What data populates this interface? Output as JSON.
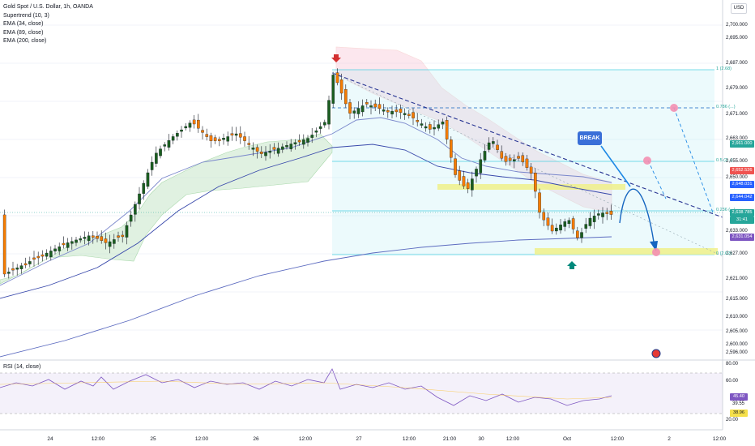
{
  "chart": {
    "symbol_title": "Gold Spot / U.S. Dollar, 1h, OANDA",
    "indicators": [
      "Supertrend (10, 3)",
      "EMA (34, close)",
      "EMA (89, close)",
      "EMA (200, close)"
    ],
    "currency": "USD",
    "break_label": "BREAK"
  },
  "price_axis": {
    "labels": [
      "2,700.000",
      "2,695.000",
      "2,687.000",
      "2,679.000",
      "2,671.000",
      "2,663.000",
      "2,655.000",
      "2,650.000",
      "2,633.000",
      "2,627.000",
      "2,621.000",
      "2,615.000",
      "2,610.000",
      "2,605.000",
      "2,600.000",
      "2,596.000"
    ],
    "badges": [
      {
        "text": "2,661.000",
        "color": "#26a69a"
      },
      {
        "text": "2,652.526",
        "color": "#ef5350"
      },
      {
        "text": "2,648.031",
        "color": "#2962ff"
      },
      {
        "text": "2,644.042",
        "color": "#2962ff"
      },
      {
        "text": "2,638.785",
        "color": "#26a69a"
      },
      {
        "text": "31:41",
        "color": "#26a69a"
      },
      {
        "text": "2,631.054",
        "color": "#7e57c2"
      }
    ]
  },
  "fib_levels": [
    {
      "label": "1 (2.68)"
    },
    {
      "label": "0.786 (...)"
    },
    {
      "label": "0.5 (2...)"
    },
    {
      "label": "0.236 (...)"
    },
    {
      "label": "0 (2.62)"
    }
  ],
  "rsi": {
    "title": "RSI (14, close)",
    "axis_labels": [
      "80.00",
      "60.00",
      "20.00"
    ],
    "badges": [
      {
        "text": "45.40",
        "color": "#7e57c2"
      },
      {
        "text": "39.55",
        "color": "none"
      },
      {
        "text": "38.96",
        "color": "#f5e04a"
      }
    ]
  },
  "time_axis": [
    "24",
    "12:00",
    "25",
    "12:00",
    "26",
    "12:00",
    "27",
    "12:00",
    "21:00",
    "30",
    "12:00",
    "Oct",
    "12:00",
    "2",
    "12:00"
  ]
}
